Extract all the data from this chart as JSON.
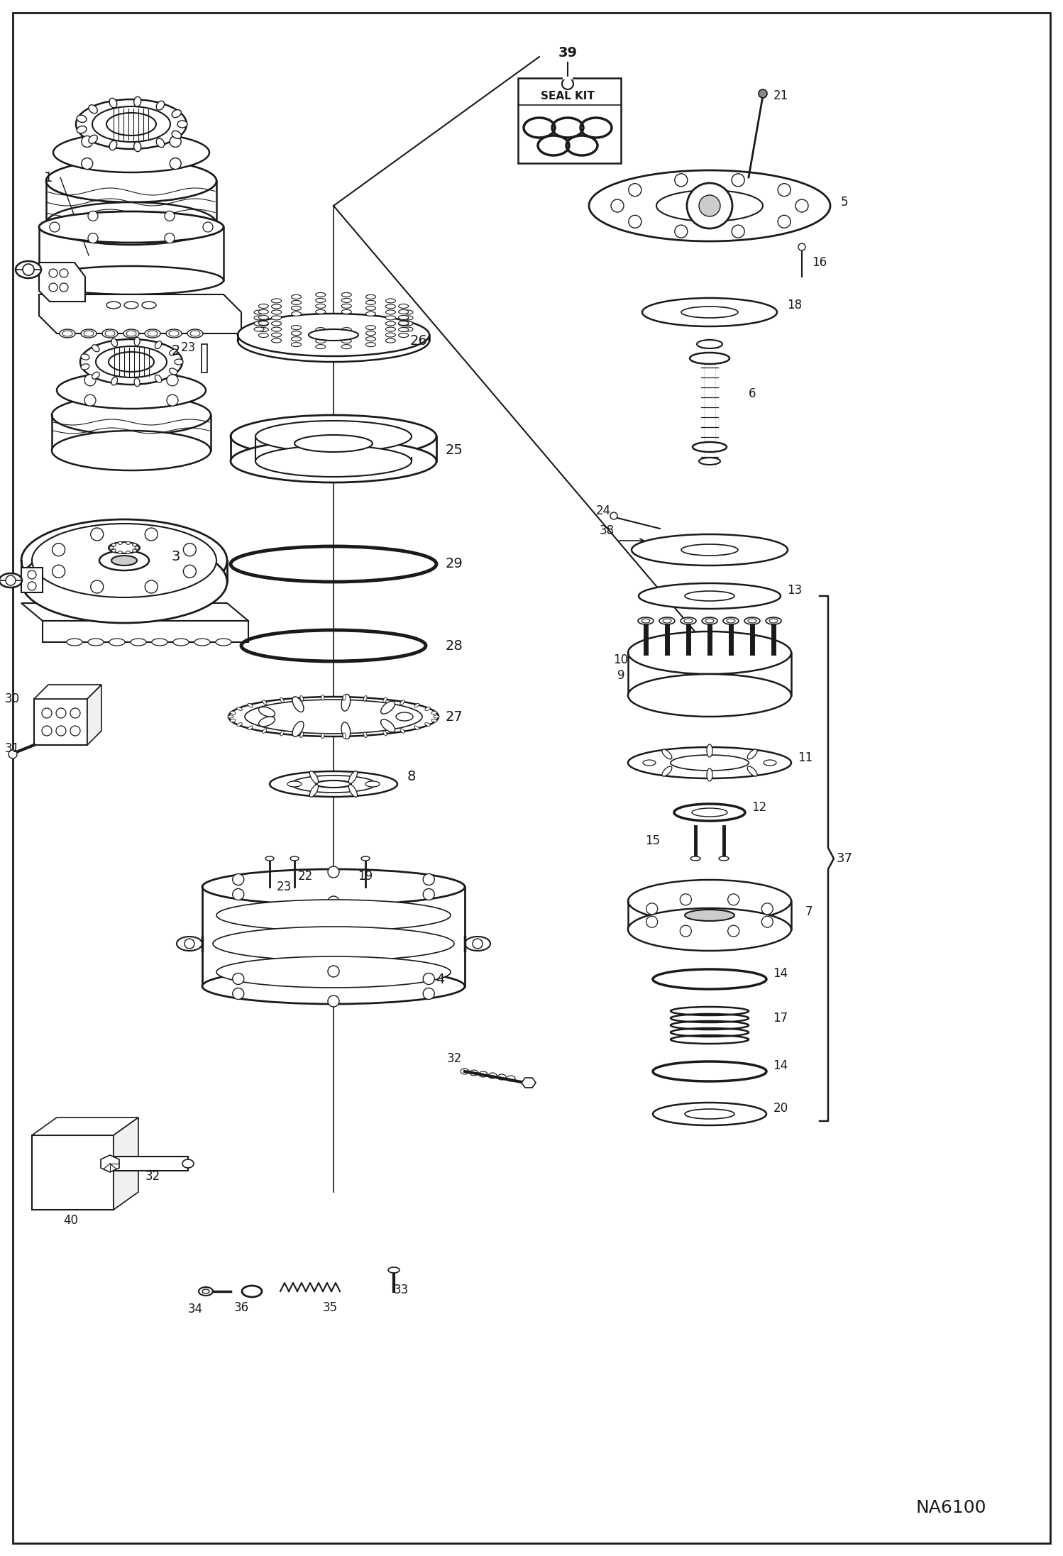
{
  "bg_color": "#ffffff",
  "line_color": "#1a1a1a",
  "fig_width": 14.98,
  "fig_height": 21.93,
  "dpi": 100,
  "watermark": "NA6100",
  "seal_kit_label": "SEAL KIT",
  "part_label_39": "39",
  "part_label_1": "1",
  "part_label_2": "2",
  "part_label_3": "3",
  "part_label_4": "4",
  "part_label_5": "5",
  "part_label_6": "6",
  "part_label_7": "7",
  "part_label_8": "8",
  "part_label_9": "9",
  "part_label_10": "10",
  "part_label_11": "11",
  "part_label_12": "12",
  "part_label_13": "13",
  "part_label_14": "14",
  "part_label_15": "15",
  "part_label_16": "16",
  "part_label_17": "17",
  "part_label_18": "18",
  "part_label_19": "19",
  "part_label_20": "20",
  "part_label_21": "21",
  "part_label_22": "22",
  "part_label_23": "23",
  "part_label_24": "24",
  "part_label_25": "25",
  "part_label_26": "26",
  "part_label_27": "27",
  "part_label_28": "28",
  "part_label_29": "29",
  "part_label_30": "30",
  "part_label_31": "31",
  "part_label_32": "32",
  "part_label_33": "33",
  "part_label_34": "34",
  "part_label_35": "35",
  "part_label_36": "36",
  "part_label_37": "37",
  "part_label_38": "38",
  "part_label_40": "40"
}
